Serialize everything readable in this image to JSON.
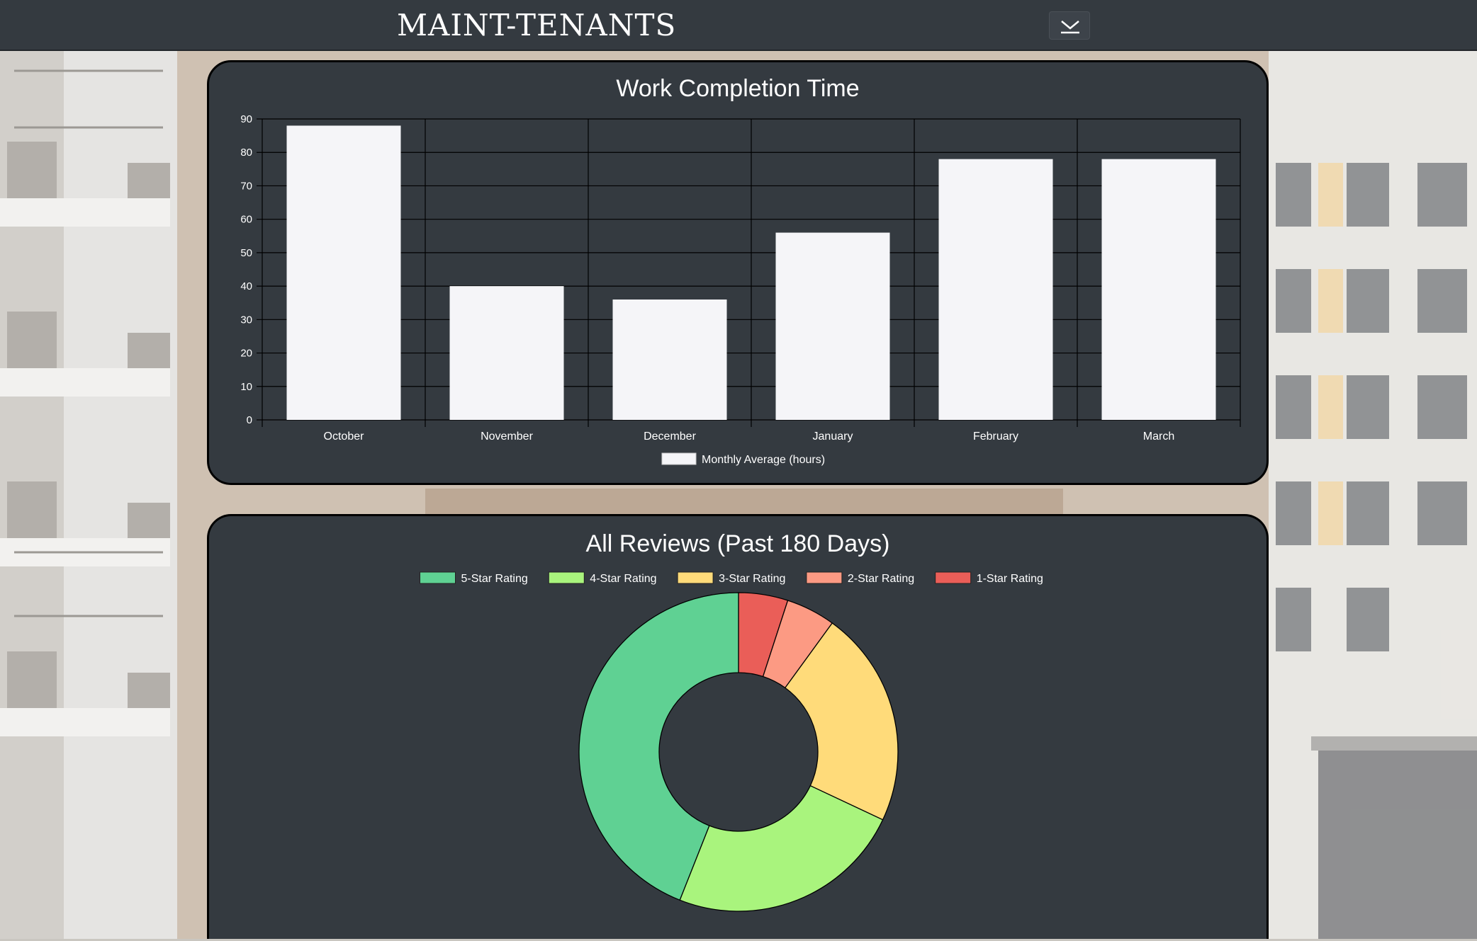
{
  "app": {
    "brand": "MAINT-TENANTS",
    "menu_icon": "chevron-down-icon"
  },
  "colors": {
    "navbar": "#343a40",
    "card": "#343a40",
    "bar_fill": "#f5f5f8",
    "grid": "#000000"
  },
  "chart_data": [
    {
      "type": "bar",
      "title": "Work Completion Time",
      "categories": [
        "October",
        "November",
        "December",
        "January",
        "February",
        "March"
      ],
      "series": [
        {
          "name": "Monthly Average (hours)",
          "values": [
            88,
            40,
            36,
            56,
            78,
            78
          ],
          "color": "#f5f5f8"
        }
      ],
      "ylim": [
        0,
        90
      ],
      "yticks": [
        "0",
        "10",
        "20",
        "30",
        "40",
        "50",
        "60",
        "70",
        "80",
        "90"
      ],
      "xlabel": "",
      "ylabel": "",
      "grid": true,
      "legend_position": "bottom"
    },
    {
      "type": "pie",
      "variant": "doughnut",
      "title": "All Reviews (Past 180 Days)",
      "labels": [
        "5-Star Rating",
        "4-Star Rating",
        "3-Star Rating",
        "2-Star Rating",
        "1-Star Rating"
      ],
      "values": [
        44,
        24,
        22,
        5,
        5
      ],
      "colors": [
        "#5fd193",
        "#a9f47d",
        "#ffdb7a",
        "#fc9a83",
        "#ea5e58"
      ],
      "draw_order": [
        4,
        3,
        2,
        1,
        0
      ],
      "legend_position": "top"
    }
  ]
}
